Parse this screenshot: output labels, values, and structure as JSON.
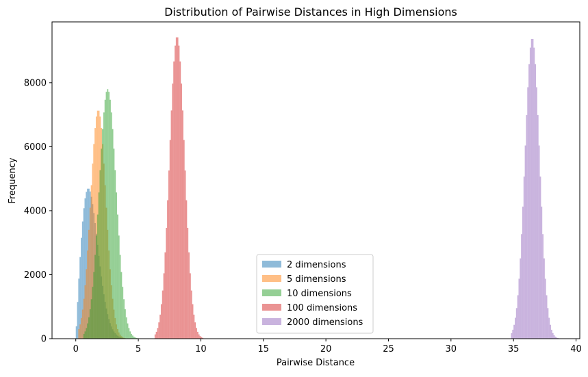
{
  "chart_data": {
    "type": "bar",
    "title": "Distribution of Pairwise Distances in High Dimensions",
    "xlabel": "Pairwise Distance",
    "ylabel": "Frequency",
    "xlim": [
      -1.9,
      40.3
    ],
    "ylim": [
      0,
      9900
    ],
    "xticks": [
      0,
      5,
      10,
      15,
      20,
      25,
      30,
      35,
      40
    ],
    "yticks": [
      0,
      2000,
      4000,
      6000,
      8000
    ],
    "legend_position": "lower-center",
    "bin_width": 0.1,
    "series": [
      {
        "name": "2 dimensions",
        "color": "#1f77b4",
        "opacity": 0.5,
        "distribution": "rayleigh",
        "mode": 1.0,
        "peak": 4700,
        "range": [
          0.0,
          4.5
        ]
      },
      {
        "name": "5 dimensions",
        "color": "#ff7f0e",
        "opacity": 0.5,
        "distribution": "normal",
        "center": 1.8,
        "peak": 7150,
        "range": [
          0.2,
          4.2
        ]
      },
      {
        "name": "10 dimensions",
        "color": "#2ca02c",
        "opacity": 0.5,
        "distribution": "normal",
        "center": 2.55,
        "peak": 7800,
        "range": [
          0.6,
          5.0
        ]
      },
      {
        "name": "100 dimensions",
        "color": "#d62728",
        "opacity": 0.5,
        "distribution": "normal",
        "center": 8.1,
        "peak": 9450,
        "range": [
          6.3,
          10.2
        ]
      },
      {
        "name": "2000 dimensions",
        "color": "#9467bd",
        "opacity": 0.5,
        "distribution": "normal",
        "center": 36.5,
        "peak": 9400,
        "range": [
          34.8,
          38.6
        ]
      }
    ]
  }
}
